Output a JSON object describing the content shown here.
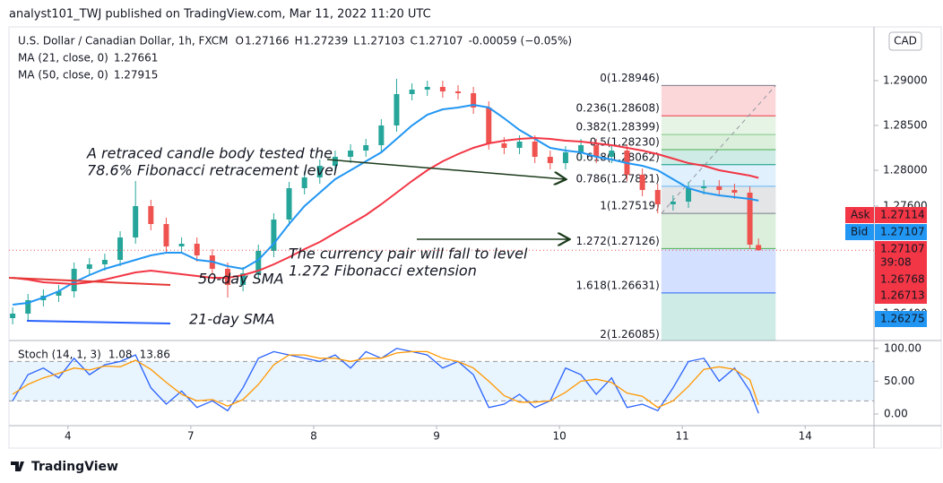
{
  "header": {
    "text": "analyst101_TWJ published on TradingView.com, Mar 11, 2022 11:20 UTC"
  },
  "footer": {
    "brand": "TradingView"
  },
  "chart_data": [
    {
      "type": "candlestick",
      "title": "U.S. Dollar / Canadian Dollar, 1h, FXCM",
      "currency": "CAD",
      "ohlc_legend": {
        "labels": [
          "O",
          "H",
          "L",
          "C"
        ],
        "values": [
          1.27166,
          1.27239,
          1.27103,
          1.27107
        ],
        "change": -0.00059,
        "change_pct": "(−0.05%)"
      },
      "x": [
        -0.45,
        -0.325,
        -0.2,
        -0.075,
        0.05,
        0.175,
        0.3,
        0.425,
        0.55,
        0.675,
        0.8,
        0.925,
        1.05,
        1.175,
        1.3,
        1.425,
        1.55,
        1.675,
        1.8,
        1.925,
        2.05,
        2.175,
        2.3,
        2.425,
        2.55,
        2.675,
        2.8,
        2.925,
        3.05,
        3.175,
        3.3,
        3.425,
        3.55,
        3.675,
        3.8,
        3.925,
        4.05,
        4.175,
        4.3,
        4.425,
        4.55,
        4.675,
        4.8,
        4.925,
        5.05,
        5.175,
        5.3,
        5.425,
        5.55,
        5.62
      ],
      "open": [
        1.2635,
        1.264,
        1.2655,
        1.266,
        1.2665,
        1.269,
        1.2695,
        1.27,
        1.2725,
        1.276,
        1.274,
        1.2715,
        1.2718,
        1.2705,
        1.269,
        1.2672,
        1.2685,
        1.271,
        1.2745,
        1.278,
        1.2792,
        1.2805,
        1.2815,
        1.2822,
        1.2828,
        1.285,
        1.2885,
        1.289,
        1.2893,
        1.2888,
        1.2886,
        1.287,
        1.283,
        1.2825,
        1.2832,
        1.2815,
        1.2808,
        1.282,
        1.2828,
        1.2815,
        1.2822,
        1.2795,
        1.2778,
        1.2762,
        1.2765,
        1.278,
        1.2782,
        1.2778,
        1.2775,
        1.27166
      ],
      "high": [
        1.2647,
        1.2662,
        1.2667,
        1.2672,
        1.2697,
        1.2702,
        1.2707,
        1.2732,
        1.2788,
        1.2767,
        1.2747,
        1.2725,
        1.2725,
        1.2712,
        1.2697,
        1.2692,
        1.2717,
        1.2752,
        1.2787,
        1.2799,
        1.2812,
        1.2822,
        1.2829,
        1.2835,
        1.2857,
        1.2902,
        1.2897,
        1.29,
        1.29,
        1.2895,
        1.2893,
        1.2877,
        1.2837,
        1.2839,
        1.2839,
        1.2822,
        1.2827,
        1.2835,
        1.2835,
        1.2829,
        1.2829,
        1.2802,
        1.2785,
        1.2772,
        1.2787,
        1.2789,
        1.2789,
        1.2785,
        1.2782,
        1.27239
      ],
      "low": [
        1.2628,
        1.2633,
        1.2648,
        1.2653,
        1.2658,
        1.2683,
        1.2688,
        1.2693,
        1.2718,
        1.2733,
        1.2708,
        1.2708,
        1.2698,
        1.2683,
        1.2658,
        1.2665,
        1.2678,
        1.2703,
        1.2738,
        1.2773,
        1.2785,
        1.2798,
        1.2808,
        1.2815,
        1.2821,
        1.2843,
        1.2878,
        1.2883,
        1.2881,
        1.2879,
        1.2863,
        1.2823,
        1.2818,
        1.2818,
        1.2808,
        1.2801,
        1.2801,
        1.2813,
        1.2808,
        1.2808,
        1.2788,
        1.2771,
        1.2752,
        1.2755,
        1.2758,
        1.2773,
        1.2771,
        1.2768,
        1.2712,
        1.27103
      ],
      "close": [
        1.264,
        1.2655,
        1.266,
        1.2665,
        1.269,
        1.2695,
        1.27,
        1.2725,
        1.276,
        1.274,
        1.2715,
        1.2718,
        1.2705,
        1.269,
        1.2672,
        1.2685,
        1.271,
        1.2745,
        1.278,
        1.2792,
        1.2805,
        1.2815,
        1.2822,
        1.2828,
        1.285,
        1.2885,
        1.289,
        1.2893,
        1.2888,
        1.2886,
        1.287,
        1.283,
        1.2825,
        1.2832,
        1.2815,
        1.2808,
        1.282,
        1.2828,
        1.2815,
        1.2822,
        1.2795,
        1.2778,
        1.2762,
        1.2765,
        1.278,
        1.2782,
        1.2778,
        1.2775,
        1.2717,
        1.27107
      ],
      "up_color": "#26a69a",
      "down_color": "#ef5350",
      "series": [
        {
          "name": "MA (21, close, 0)",
          "color": "#2196f3",
          "values": [
            1.265,
            1.2652,
            1.2658,
            1.2665,
            1.2675,
            1.2683,
            1.269,
            1.2695,
            1.27,
            1.2705,
            1.2708,
            1.2708,
            1.27,
            1.2698,
            1.2693,
            1.269,
            1.27,
            1.2718,
            1.274,
            1.276,
            1.2775,
            1.279,
            1.28,
            1.281,
            1.282,
            1.2835,
            1.285,
            1.2862,
            1.2868,
            1.287,
            1.2873,
            1.287,
            1.2858,
            1.2845,
            1.2835,
            1.2825,
            1.2822,
            1.282,
            1.2815,
            1.2812,
            1.2808,
            1.2805,
            1.28,
            1.279,
            1.278,
            1.2775,
            1.2772,
            1.277,
            1.2768,
            1.27661
          ]
        },
        {
          "name": "MA (50, close, 0)",
          "color": "#f23645",
          "values": [
            1.268,
            1.2678,
            1.2675,
            1.2674,
            1.2673,
            1.2675,
            1.2678,
            1.2682,
            1.2686,
            1.2688,
            1.2686,
            1.2684,
            1.2682,
            1.268,
            1.268,
            1.2683,
            1.2688,
            1.2695,
            1.2703,
            1.2712,
            1.272,
            1.273,
            1.274,
            1.275,
            1.2762,
            1.2775,
            1.2788,
            1.28,
            1.281,
            1.2818,
            1.2825,
            1.283,
            1.2833,
            1.2835,
            1.2836,
            1.2835,
            1.2833,
            1.2832,
            1.283,
            1.2828,
            1.2825,
            1.2822,
            1.2818,
            1.2813,
            1.2808,
            1.2805,
            1.28,
            1.2797,
            1.2794,
            1.27915
          ]
        }
      ],
      "xlim": [
        -0.48,
        6.56
      ],
      "xticks": [
        {
          "value": 0,
          "label": "4"
        },
        {
          "value": 1,
          "label": "7"
        },
        {
          "value": 2,
          "label": "8"
        },
        {
          "value": 3,
          "label": "9"
        },
        {
          "value": 4,
          "label": "10"
        },
        {
          "value": 5,
          "label": "11"
        },
        {
          "value": 6,
          "label": "14"
        }
      ],
      "ylim": [
        1.261,
        1.296
      ],
      "yticks": [
        {
          "value": 1.29,
          "label": "1.29000"
        },
        {
          "value": 1.285,
          "label": "1.28500"
        },
        {
          "value": 1.28,
          "label": "1.28000"
        },
        {
          "value": 1.276,
          "label": "1.27600"
        },
        {
          "value": 1.264,
          "label": "1.26400"
        }
      ],
      "fibonacci": {
        "x": [
          4.83,
          5.76
        ],
        "levels": [
          {
            "label": "0(1.28946)",
            "value": 1.28946,
            "color": "#787b86"
          },
          {
            "label": "0.236(1.28608)",
            "value": 1.28608,
            "color": "#f23645"
          },
          {
            "label": "0.382(1.28399)",
            "value": 1.28399,
            "color": "#81c784"
          },
          {
            "label": "0.5(1.28230)",
            "value": 1.2823,
            "color": "#4caf50"
          },
          {
            "label": "0.618(1.28062)",
            "value": 1.28062,
            "color": "#089981"
          },
          {
            "label": "0.786(1.27821)",
            "value": 1.27821,
            "color": "#64b5f6"
          },
          {
            "label": "1(1.27519)",
            "value": 1.27519,
            "color": "#787b86"
          },
          {
            "label": "1.272(1.27126)",
            "value": 1.27126,
            "color": "#4caf50"
          },
          {
            "label": "1.618(1.26631)",
            "value": 1.26631,
            "color": "#2962ff"
          },
          {
            "label": "2(1.26085)",
            "value": 1.26085,
            "color": "#089981"
          }
        ]
      },
      "annotations": [
        {
          "lines": [
            "A retraced candle body tested the",
            "78.6% Fibonacci retracement level"
          ],
          "color": "#1b3a1b"
        },
        {
          "lines": [
            "The currency pair will fall to level",
            "1.272 Fibonacci extension"
          ],
          "color": "#1b3a1b"
        },
        {
          "lines": [
            "50-day SMA"
          ],
          "color": "#e53935"
        },
        {
          "lines": [
            "21-day SMA"
          ],
          "color": "#2962ff"
        }
      ],
      "price_tags": [
        {
          "label": "Ask",
          "value": 1.27114,
          "color": "#f23645"
        },
        {
          "label": "Bid",
          "value": 1.27107,
          "color": "#2196f3"
        },
        {
          "value": 1.27107,
          "countdown": "39:08",
          "color": "#f23645"
        },
        {
          "value": 1.26768,
          "color": "#f23645"
        },
        {
          "value": 1.26713,
          "color": "#f23645"
        },
        {
          "value": 1.26275,
          "color": "#2196f3"
        }
      ]
    },
    {
      "type": "line",
      "title": "Stoch (14, 1, 3)",
      "series": [
        {
          "color": "#2962ff",
          "values": [
            20,
            60,
            70,
            55,
            85,
            60,
            75,
            80,
            90,
            40,
            15,
            35,
            10,
            20,
            5,
            40,
            85,
            95,
            90,
            85,
            80,
            90,
            70,
            95,
            85,
            100,
            95,
            90,
            70,
            80,
            60,
            10,
            15,
            30,
            10,
            20,
            70,
            60,
            30,
            55,
            10,
            15,
            5,
            40,
            80,
            85,
            50,
            70,
            35,
            1.08
          ]
        },
        {
          "color": "#ff9800",
          "values": [
            30,
            45,
            55,
            62,
            70,
            67,
            73,
            72,
            82,
            68,
            48,
            30,
            20,
            22,
            12,
            22,
            45,
            75,
            90,
            90,
            85,
            85,
            80,
            85,
            85,
            93,
            95,
            95,
            85,
            80,
            70,
            50,
            28,
            18,
            18,
            20,
            33,
            50,
            53,
            48,
            32,
            27,
            10,
            20,
            42,
            68,
            72,
            68,
            52,
            13.86
          ]
        }
      ],
      "ylim": [
        -17.8,
        112
      ],
      "yticks": [
        {
          "value": 100,
          "label": "100.00"
        },
        {
          "value": 50,
          "label": "50.00"
        },
        {
          "value": 0,
          "label": "0.00"
        }
      ],
      "bands": [
        20,
        80
      ],
      "band_color": "#2196f3"
    }
  ]
}
